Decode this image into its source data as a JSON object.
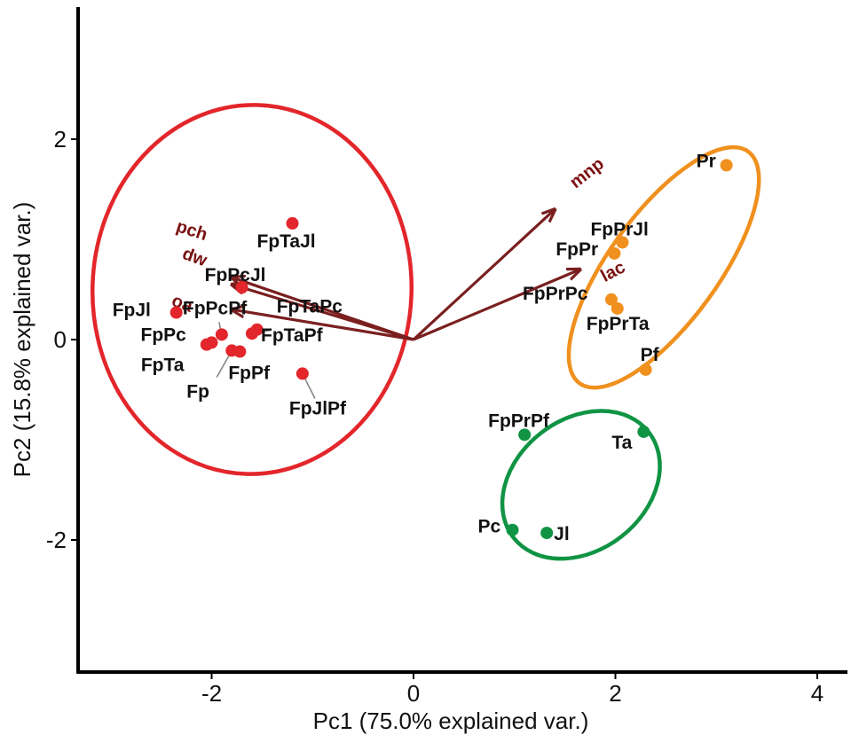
{
  "chart_data": {
    "type": "scatter",
    "subtype": "pca-biplot",
    "xlabel": "Pc1 (75.0% explained var.)",
    "ylabel": "Pc2 (15.8% explained var.)",
    "xlim": [
      -3.3,
      4.3
    ],
    "ylim": [
      -3.3,
      3.3
    ],
    "x_ticks": [
      -2,
      0,
      2,
      4
    ],
    "y_ticks": [
      -2,
      0,
      2
    ],
    "grid": false,
    "colors": {
      "red": "#e3262b",
      "orange": "#f0901e",
      "green": "#109444",
      "arrow": "#7a1f1f",
      "var_label": "#7a1010"
    },
    "groups": [
      {
        "color": "red",
        "ellipse": {
          "cx": -1.6,
          "cy": 0.5,
          "rx": 1.83,
          "ry": 1.58,
          "angle": -88
        },
        "points": [
          {
            "label": "FpTaJl",
            "x": -1.2,
            "y": 1.16
          },
          {
            "label": "FpPcJl",
            "x": -1.7,
            "y": 0.52
          },
          {
            "label": "FpJl",
            "x": -2.35,
            "y": 0.27
          },
          {
            "label": "FpPcPf",
            "x": -1.9,
            "y": 0.05
          },
          {
            "label": "FpPc",
            "x": -2.0,
            "y": -0.03
          },
          {
            "label": "FpTa",
            "x": -2.05,
            "y": -0.05
          },
          {
            "label": "Fp",
            "x": -1.8,
            "y": -0.11
          },
          {
            "label": "FpPf",
            "x": -1.72,
            "y": -0.12
          },
          {
            "label": "FpTaPc",
            "x": -1.55,
            "y": 0.1
          },
          {
            "label": "FpTaPf",
            "x": -1.6,
            "y": 0.06
          },
          {
            "label": "FpJlPf",
            "x": -1.1,
            "y": -0.34
          }
        ]
      },
      {
        "color": "orange",
        "ellipse": {
          "cx": 2.48,
          "cy": 0.72,
          "rx": 1.42,
          "ry": 0.54,
          "angle": -54
        },
        "points": [
          {
            "label": "Pr",
            "x": 3.1,
            "y": 1.74
          },
          {
            "label": "FpPrJl",
            "x": 2.07,
            "y": 0.97
          },
          {
            "label": "FpPr",
            "x": 1.99,
            "y": 0.86
          },
          {
            "label": "FpPrPc",
            "x": 1.96,
            "y": 0.4
          },
          {
            "label": "FpPrTa",
            "x": 2.02,
            "y": 0.31
          },
          {
            "label": "Pf",
            "x": 2.3,
            "y": -0.3
          }
        ]
      },
      {
        "color": "green",
        "ellipse": {
          "cx": 1.66,
          "cy": -1.45,
          "rx": 0.85,
          "ry": 0.65,
          "angle": -38
        },
        "points": [
          {
            "label": "FpPrPf",
            "x": 1.1,
            "y": -0.95
          },
          {
            "label": "Ta",
            "x": 2.28,
            "y": -0.92
          },
          {
            "label": "Pc",
            "x": 0.98,
            "y": -1.9
          },
          {
            "label": "Jl",
            "x": 1.32,
            "y": -1.93
          }
        ]
      }
    ],
    "loadings": [
      {
        "label": "mnp",
        "x": 1.4,
        "y": 1.3
      },
      {
        "label": "lac",
        "x": 1.65,
        "y": 0.7
      },
      {
        "label": "pch",
        "x": -1.8,
        "y": 0.62
      },
      {
        "label": "dw",
        "x": -1.8,
        "y": 0.55
      },
      {
        "label": "oa",
        "x": -1.8,
        "y": 0.3
      }
    ]
  }
}
